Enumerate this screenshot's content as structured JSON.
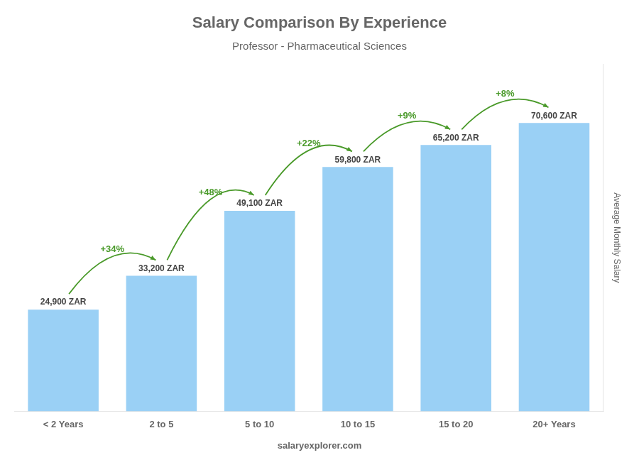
{
  "chart_data": {
    "type": "bar",
    "title": "Salary Comparison By Experience",
    "subtitle": "Professor - Pharmaceutical Sciences",
    "categories": [
      "< 2 Years",
      "2 to 5",
      "5 to 10",
      "10 to 15",
      "15 to 20",
      "20+ Years"
    ],
    "values": [
      24900,
      33200,
      49100,
      59800,
      65200,
      70600
    ],
    "value_labels": [
      "24,900 ZAR",
      "33,200 ZAR",
      "49,100 ZAR",
      "59,800 ZAR",
      "65,200 ZAR",
      "70,600 ZAR"
    ],
    "data_labels": true,
    "ylabel": "Average Monthly Salary",
    "ylim": [
      0,
      85000
    ],
    "grid": false,
    "tick_labels": "x",
    "annotations": [
      {
        "text": "+34%",
        "from": "< 2 Years",
        "to": "2 to 5"
      },
      {
        "text": "+48%",
        "from": "2 to 5",
        "to": "5 to 10"
      },
      {
        "text": "+22%",
        "from": "5 to 10",
        "to": "10 to 15"
      },
      {
        "text": "+9%",
        "from": "10 to 15",
        "to": "15 to 20"
      },
      {
        "text": "+8%",
        "from": "15 to 20",
        "to": "20+ Years"
      },
      {
        "text": "salaryexplorer.com"
      }
    ]
  }
}
